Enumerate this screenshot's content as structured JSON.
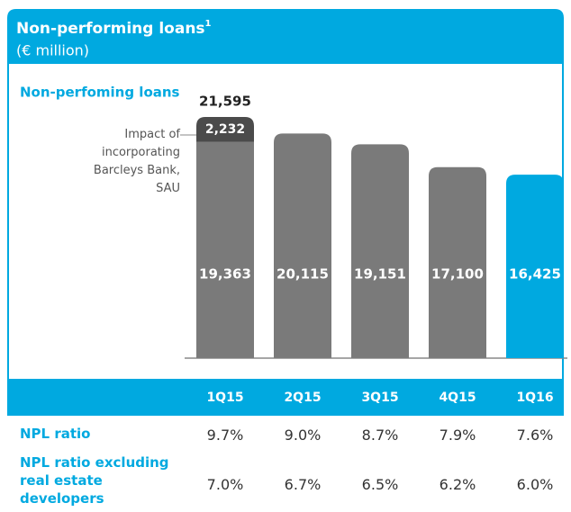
{
  "chart_data": {
    "type": "bar",
    "title": "Non-performing loans",
    "title_note": "1",
    "subtitle": "(€ million)",
    "y_label": "Non-perfoming loans",
    "categories": [
      "1Q15",
      "2Q15",
      "3Q15",
      "4Q15",
      "1Q16"
    ],
    "stacked": true,
    "series": [
      {
        "name": null,
        "colors": [
          "#7a7a7a",
          "#7a7a7a",
          "#7a7a7a",
          "#7a7a7a",
          "#00a9e0"
        ],
        "values": [
          19363,
          20115,
          19151,
          17100,
          16425
        ],
        "value_labels": [
          "19,363",
          "20,115",
          "19,151",
          "17,100",
          "16,425"
        ]
      },
      {
        "name": "Impact of incorporating Barcleys Bank, SAU",
        "color": "#4b4b4b",
        "values": [
          2232,
          null,
          null,
          null,
          null
        ],
        "value_labels": [
          "2,232",
          null,
          null,
          null,
          null
        ]
      }
    ],
    "totals": [
      21595,
      null,
      null,
      null,
      null
    ],
    "totals_labels": [
      "21,595",
      null,
      null,
      null,
      null
    ]
  },
  "table": {
    "rows": [
      {
        "label": "NPL ratio",
        "values": [
          9.7,
          9.0,
          8.7,
          7.9,
          7.6
        ],
        "value_labels": [
          "9.7%",
          "9.0%",
          "8.7%",
          "7.9%",
          "7.6%"
        ]
      },
      {
        "label": "NPL ratio excluding real estate developers",
        "values": [
          7.0,
          6.7,
          6.5,
          6.2,
          6.0
        ],
        "value_labels": [
          "7.0%",
          "6.7%",
          "6.5%",
          "6.2%",
          "6.0%"
        ]
      }
    ]
  }
}
